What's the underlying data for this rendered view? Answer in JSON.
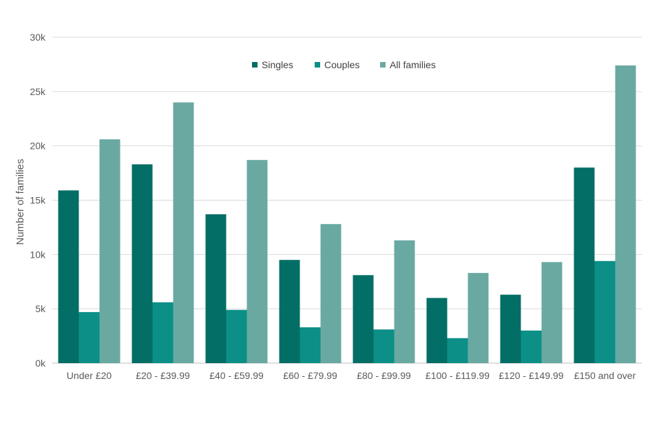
{
  "chart_data": {
    "type": "bar",
    "ylabel": "Number of families",
    "ylim": [
      0,
      30000
    ],
    "yticks": [
      {
        "value": 0,
        "label": "0k"
      },
      {
        "value": 5000,
        "label": "5k"
      },
      {
        "value": 10000,
        "label": "10k"
      },
      {
        "value": 15000,
        "label": "15k"
      },
      {
        "value": 20000,
        "label": "20k"
      },
      {
        "value": 25000,
        "label": "25k"
      },
      {
        "value": 30000,
        "label": "30k"
      }
    ],
    "grid": true,
    "legend_position": "top-center",
    "categories": [
      "Under £20",
      "£20 - £39.99",
      "£40 - £59.99",
      "£60 - £79.99",
      "£80 - £99.99",
      "£100 - £119.99",
      "£120 - £149.99",
      "£150 and over"
    ],
    "series": [
      {
        "name": "Singles",
        "color": "#036e65",
        "values": [
          15900,
          18300,
          13700,
          9500,
          8100,
          6000,
          6300,
          18000
        ]
      },
      {
        "name": "Couples",
        "color": "#0b8f86",
        "values": [
          4700,
          5600,
          4900,
          3300,
          3100,
          2300,
          3000,
          9400
        ]
      },
      {
        "name": "All families",
        "color": "#69a9a2",
        "values": [
          20600,
          24000,
          18700,
          12800,
          11300,
          8300,
          9300,
          27400
        ]
      }
    ]
  }
}
